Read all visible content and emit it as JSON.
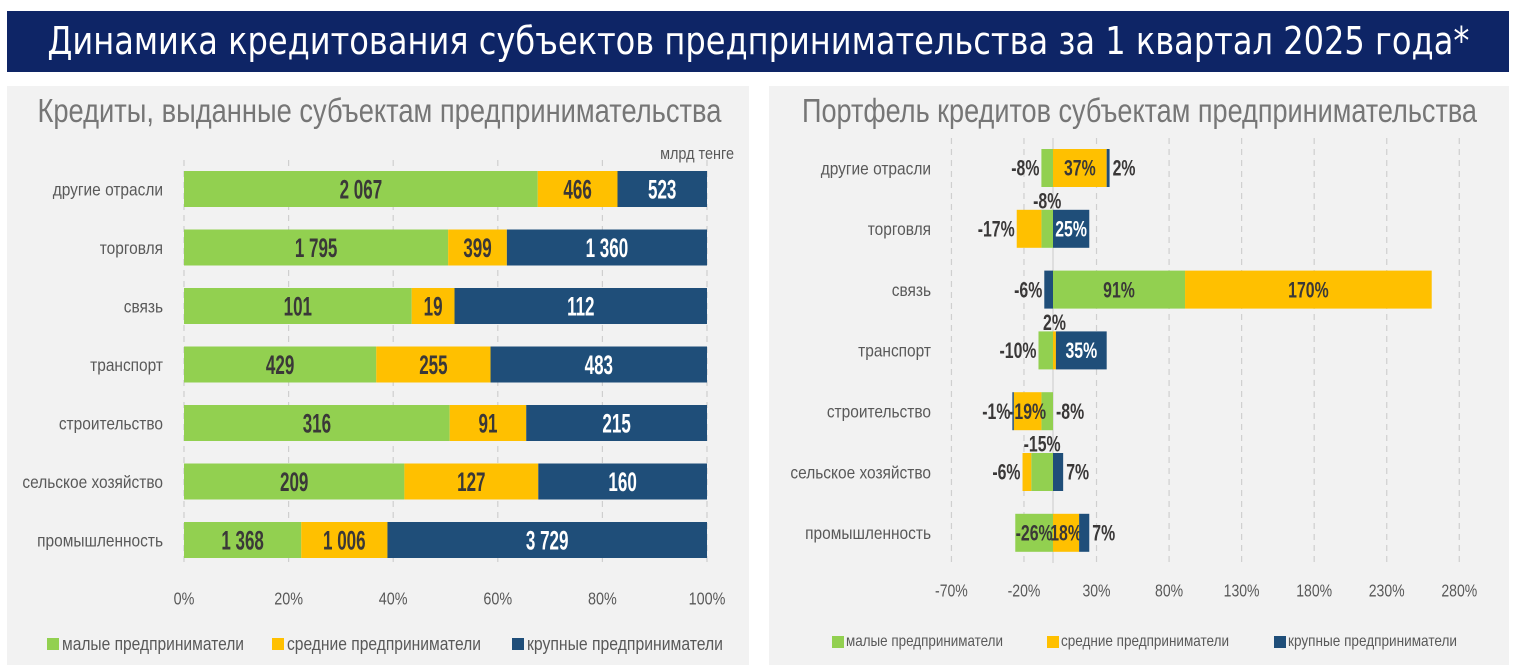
{
  "header": {
    "title": "Динамика кредитования субъектов предпринимательства за 1 квартал 2025 года*"
  },
  "chart_data": [
    {
      "type": "bar",
      "orientation": "horizontal",
      "stacked": true,
      "percent_stacked": true,
      "title": "Кредиты, выданные субъектам предпринимательства",
      "unit_label": "млрд тенге",
      "xlabel": "",
      "ylabel": "",
      "categories": [
        "другие отрасли",
        "торговля",
        "связь",
        "транспорт",
        "строительство",
        "сельское хозяйство",
        "промышленность"
      ],
      "series": [
        {
          "name": "малые предприниматели",
          "color": "#92d050",
          "values": [
            2067,
            1795,
            101,
            429,
            316,
            209,
            1368
          ]
        },
        {
          "name": "средние предприниматели",
          "color": "#ffc000",
          "values": [
            466,
            399,
            19,
            255,
            91,
            127,
            1006
          ]
        },
        {
          "name": "крупные предприниматели",
          "color": "#1f4e79",
          "values": [
            523,
            1360,
            112,
            483,
            215,
            160,
            3729
          ]
        }
      ],
      "xlim": [
        0,
        100
      ],
      "xtick_values": [
        0,
        20,
        40,
        60,
        80,
        100
      ],
      "xticks": [
        "0%",
        "20%",
        "40%",
        "60%",
        "80%",
        "100%"
      ],
      "grid": true,
      "legend_position": "bottom"
    },
    {
      "type": "bar",
      "orientation": "horizontal",
      "stacked": true,
      "percent_stacked": false,
      "title": "Портфель кредитов субъектам предпринимательства",
      "unit": "%",
      "xlabel": "",
      "ylabel": "",
      "categories": [
        "другие отрасли",
        "торговля",
        "связь",
        "транспорт",
        "строительство",
        "сельское хозяйство",
        "промышленность"
      ],
      "series": [
        {
          "name": "малые предприниматели",
          "color": "#92d050",
          "values": [
            -8,
            -8,
            91,
            -10,
            -8,
            -15,
            -26
          ]
        },
        {
          "name": "средние предприниматели",
          "color": "#ffc000",
          "values": [
            37,
            -17,
            170,
            2,
            -19,
            -6,
            18
          ]
        },
        {
          "name": "крупные предприниматели",
          "color": "#1f4e79",
          "values": [
            2,
            25,
            -6,
            35,
            -1,
            7,
            7
          ]
        }
      ],
      "xlim": [
        -70,
        280
      ],
      "xtick_values": [
        -70,
        -20,
        30,
        80,
        130,
        180,
        230,
        280
      ],
      "xticks": [
        "-70%",
        "-20%",
        "30%",
        "80%",
        "130%",
        "180%",
        "230%",
        "280%"
      ],
      "grid": true,
      "legend_position": "bottom"
    }
  ]
}
